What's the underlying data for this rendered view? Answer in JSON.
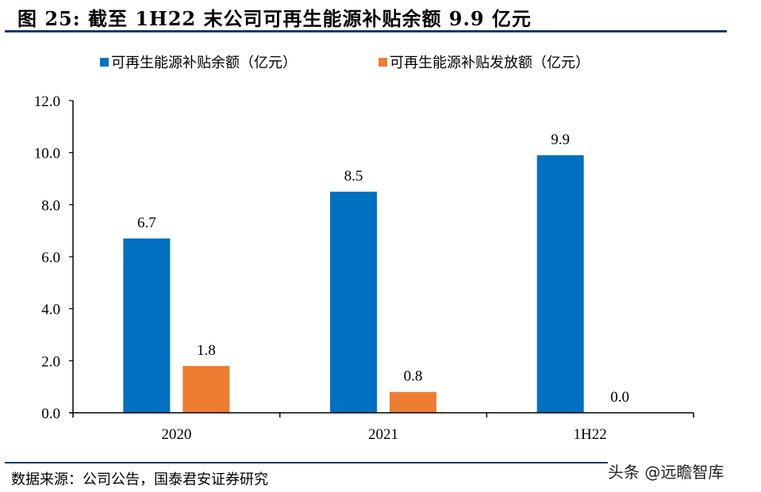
{
  "header": {
    "title": "图 25: 截至 1H22 末公司可再生能源补贴余额 9.9 亿元"
  },
  "footer": {
    "source": "数据来源：公司公告，国泰君安证券研究",
    "watermark": "头条 @远瞻智库"
  },
  "colors": {
    "rule": "#1f3864",
    "series_balance": "#0070c0",
    "series_issued": "#ed7d31",
    "axis": "#000000"
  },
  "chart_data": {
    "type": "bar",
    "title": "图 25: 截至 1H22 末公司可再生能源补贴余额 9.9 亿元",
    "xlabel": "",
    "ylabel": "",
    "categories": [
      "2020",
      "2021",
      "1H22"
    ],
    "series": [
      {
        "name": "可再生能源补贴余额（亿元）",
        "values": [
          6.7,
          8.5,
          9.9
        ],
        "labels": [
          "6.7",
          "8.5",
          "9.9"
        ],
        "color": "#0070c0"
      },
      {
        "name": "可再生能源补贴发放额（亿元）",
        "values": [
          1.8,
          0.8,
          0.0
        ],
        "labels": [
          "1.8",
          "0.8",
          "0.0"
        ],
        "color": "#ed7d31"
      }
    ],
    "ylim": [
      0,
      12
    ],
    "yticks": [
      0,
      2,
      4,
      6,
      8,
      10,
      12
    ],
    "ytick_labels": [
      "0.0",
      "2.0",
      "4.0",
      "6.0",
      "8.0",
      "10.0",
      "12.0"
    ],
    "grid": false,
    "legend_position": "top"
  }
}
